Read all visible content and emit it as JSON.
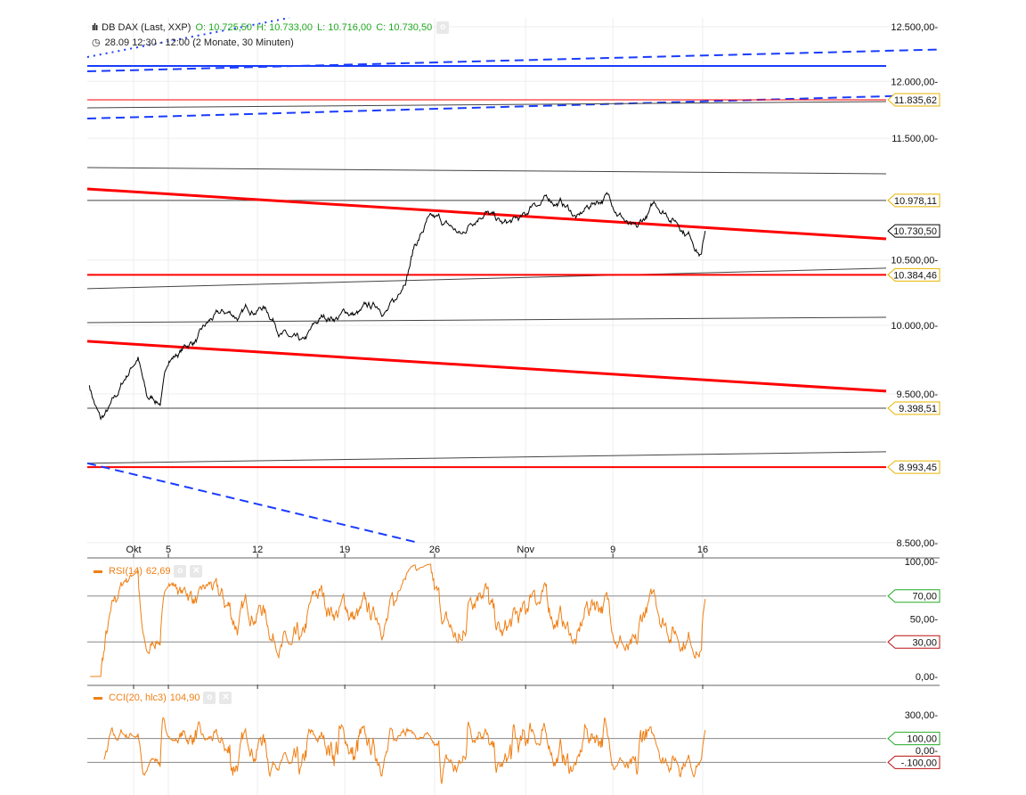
{
  "header": {
    "instrument": "DB DAX (Last, XXP)",
    "open": "O: 10.725,50",
    "high": "H: 10.733,00",
    "low": "L: 10.716,00",
    "close": "C: 10.730,50",
    "range": "28.09 12:30 - 12:00 (2 Monate, 30 Minuten)"
  },
  "rsi": {
    "label": "RSI(14)",
    "value": "62,69"
  },
  "cci": {
    "label": "CCI(20, hlc3)",
    "value": "104,90"
  },
  "colors": {
    "price": "#000000",
    "red": "#ff0000",
    "blue": "#1a3cff",
    "gray": "#444444",
    "indicator": "#f07f14",
    "tag": "#e6b400"
  },
  "chart_data": {
    "type": "line",
    "title": "DB DAX (Last, XXP)",
    "y_scale": "log",
    "ylim": [
      8500,
      12500
    ],
    "y_ticks": [
      {
        "v": 12500,
        "label": "12.500,00"
      },
      {
        "v": 12000,
        "label": "12.000,00"
      },
      {
        "v": 11500,
        "label": "11.500,00"
      },
      {
        "v": 10500,
        "label": "10.500,00"
      },
      {
        "v": 10000,
        "label": "10.000,00"
      },
      {
        "v": 9500,
        "label": "9.500,00"
      },
      {
        "v": 8500,
        "label": "8.500,00"
      }
    ],
    "x_unit": "trading days from 1 Oct",
    "x_ticks": [
      {
        "t": 0,
        "label": "Okt"
      },
      {
        "t": 2.75,
        "label": "5"
      },
      {
        "t": 9.8,
        "label": "12"
      },
      {
        "t": 16.7,
        "label": "19"
      },
      {
        "t": 23.8,
        "label": "26"
      },
      {
        "t": 31,
        "label": "Nov"
      },
      {
        "t": 37.9,
        "label": "9"
      },
      {
        "t": 45,
        "label": "16"
      }
    ],
    "price_keypoints": [
      [
        -3.5,
        9561
      ],
      [
        -2.6,
        9322
      ],
      [
        -1.4,
        9478
      ],
      [
        0.35,
        9766
      ],
      [
        1.06,
        9478
      ],
      [
        2.1,
        9416
      ],
      [
        2.8,
        9734
      ],
      [
        4.6,
        9863
      ],
      [
        6.3,
        10061
      ],
      [
        8.5,
        10095
      ],
      [
        10.2,
        10129
      ],
      [
        12,
        9963
      ],
      [
        13.4,
        9911
      ],
      [
        14.8,
        10061
      ],
      [
        16.9,
        10095
      ],
      [
        19,
        10162
      ],
      [
        20.8,
        10196
      ],
      [
        21.5,
        10304
      ],
      [
        22.2,
        10618
      ],
      [
        23.2,
        10832
      ],
      [
        24.6,
        10795
      ],
      [
        26,
        10709
      ],
      [
        27.8,
        10883
      ],
      [
        29.2,
        10795
      ],
      [
        31,
        10854
      ],
      [
        31.7,
        10956
      ],
      [
        33.8,
        10978
      ],
      [
        35.2,
        10869
      ],
      [
        37.3,
        11028
      ],
      [
        38.7,
        10832
      ],
      [
        39.8,
        10760
      ],
      [
        41.2,
        10956
      ],
      [
        42.6,
        10832
      ],
      [
        44,
        10689
      ],
      [
        44.9,
        10547
      ],
      [
        45.2,
        10730.5
      ]
    ],
    "lines": [
      {
        "style": "solid",
        "color": "blue",
        "width": 2,
        "from": 12139,
        "to": 12139
      },
      {
        "style": "dashed",
        "color": "blue",
        "width": 2,
        "from": 12090,
        "to": 12277
      },
      {
        "style": "dashed",
        "color": "blue",
        "width": 2,
        "from": 11671,
        "to": 11867
      },
      {
        "style": "solid",
        "color": "red",
        "width": 1,
        "from": 11835.62,
        "to": 11835.62
      },
      {
        "style": "solid",
        "color": "gray",
        "width": 1,
        "from": 11765,
        "to": 11820
      },
      {
        "style": "solid",
        "color": "gray",
        "width": 1,
        "from": 11251,
        "to": 11199
      },
      {
        "style": "solid",
        "color": "gray",
        "width": 1,
        "from": 10978.11,
        "to": 10978.11
      },
      {
        "style": "solid",
        "color": "red",
        "width": 3,
        "from": 11073,
        "to": 10667
      },
      {
        "style": "solid",
        "color": "gray",
        "width": 1,
        "from": 10277,
        "to": 10436
      },
      {
        "style": "solid",
        "color": "red",
        "width": 2,
        "from": 10384.46,
        "to": 10384.46
      },
      {
        "style": "solid",
        "color": "gray",
        "width": 1,
        "from": 10020,
        "to": 10060
      },
      {
        "style": "solid",
        "color": "red",
        "width": 3,
        "from": 9881,
        "to": 9519
      },
      {
        "style": "solid",
        "color": "gray",
        "width": 1,
        "from": 9398.51,
        "to": 9398.51
      },
      {
        "style": "solid",
        "color": "gray",
        "width": 1,
        "from": 9020,
        "to": 9098
      },
      {
        "style": "solid",
        "color": "red",
        "width": 2,
        "from": 8993.45,
        "to": 8993.45
      }
    ],
    "tags": [
      {
        "v": 11835.62,
        "label": "11.835,62",
        "color": "tag"
      },
      {
        "v": 10978.11,
        "label": "10.978,11",
        "color": "tag"
      },
      {
        "v": 10730.5,
        "label": "10.730,50",
        "color": "price"
      },
      {
        "v": 10384.46,
        "label": "10.384,46",
        "color": "tag"
      },
      {
        "v": 9398.51,
        "label": "9.398,51",
        "color": "tag"
      },
      {
        "v": 8993.45,
        "label": "8.993,45",
        "color": "tag"
      }
    ],
    "rsi_axis": [
      {
        "v": 100,
        "label": "100,00"
      },
      {
        "v": 50,
        "label": "50,00"
      },
      {
        "v": 0,
        "label": "0,00"
      }
    ],
    "rsi_levels": [
      {
        "v": 70,
        "label": "70,00",
        "color": "#22aa22"
      },
      {
        "v": 30,
        "label": "30,00",
        "color": "#bb1111"
      }
    ],
    "cci_axis": [
      {
        "v": 300,
        "label": "300,00"
      },
      {
        "v": 0,
        "label": "0,00"
      }
    ],
    "cci_levels": [
      {
        "v": 100,
        "label": "100,00",
        "color": "#22aa22"
      },
      {
        "v": -100,
        "label": "-.100,00",
        "color": "#bb1111"
      }
    ]
  }
}
